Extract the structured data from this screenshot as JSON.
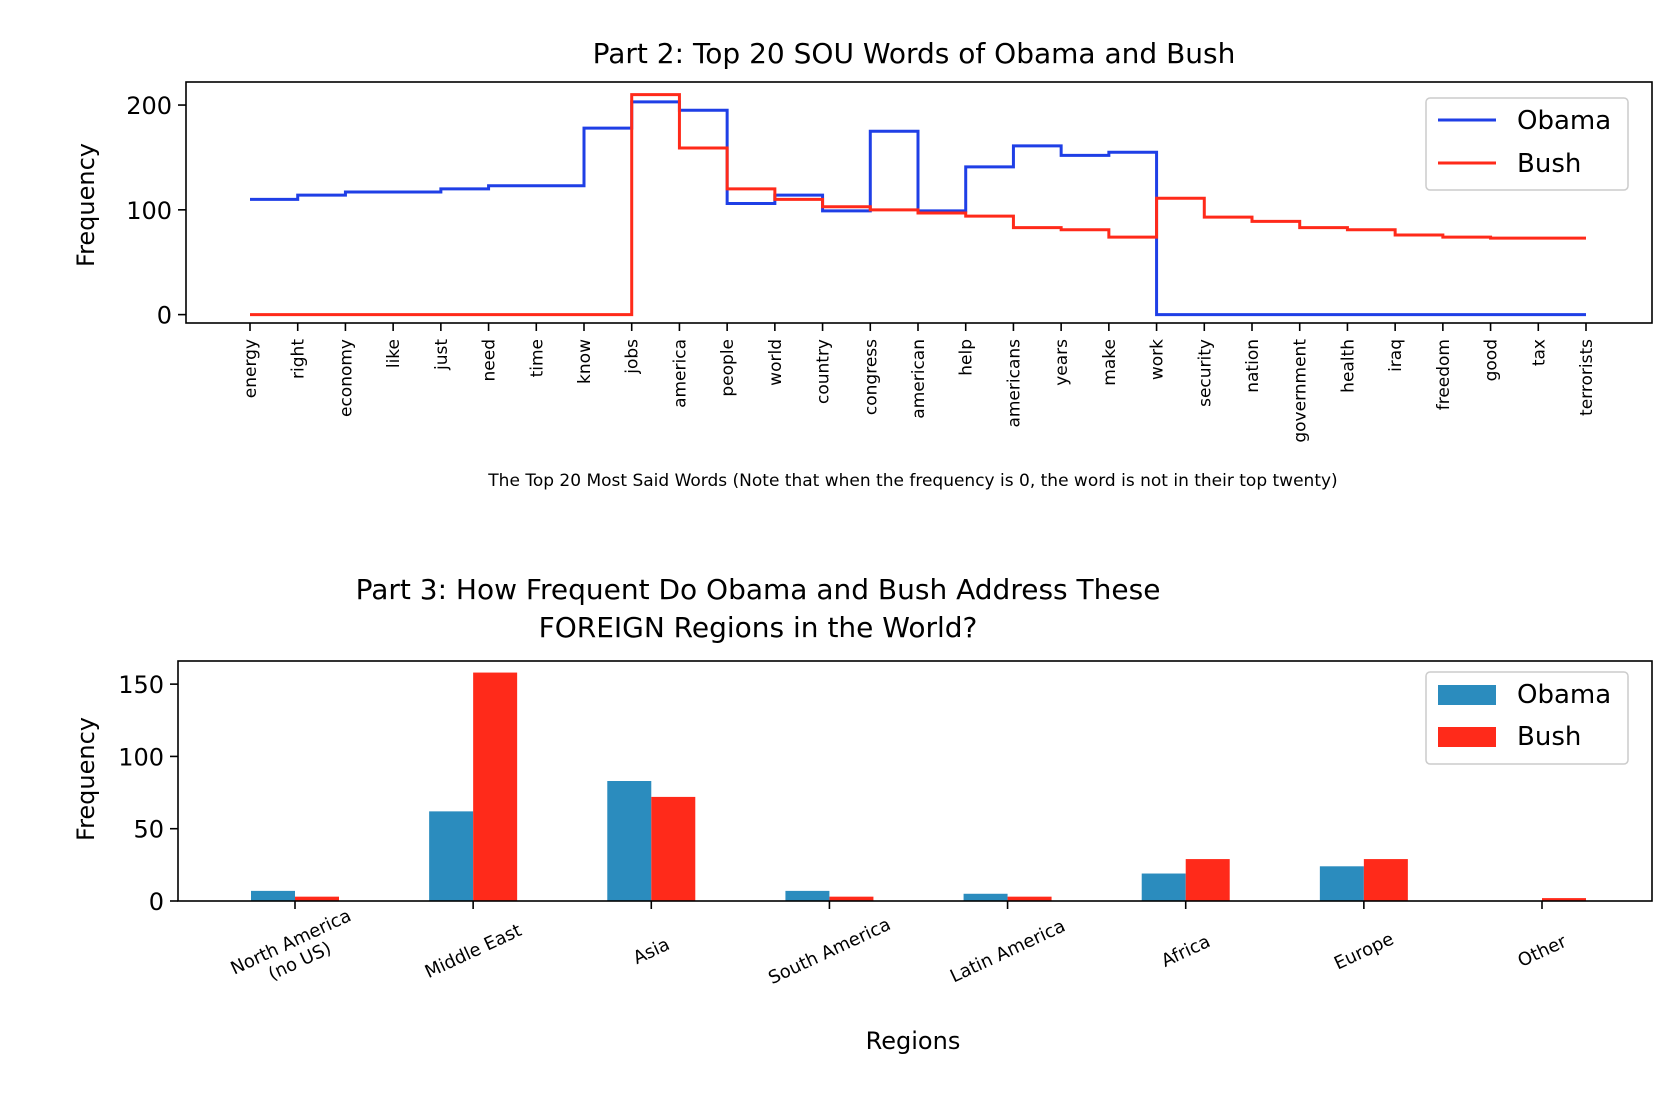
{
  "chart_data": [
    {
      "type": "line",
      "step": "post",
      "title": "Part 2: Top 20 SOU Words of Obama and Bush",
      "xlabel": "The Top 20 Most Said Words (Note that when the frequency is 0, the word is not in their top twenty)",
      "ylabel": "Frequency",
      "ylim": [
        -8,
        222
      ],
      "yticks": [
        0,
        100,
        200
      ],
      "grid": false,
      "legend": "top-right",
      "categories": [
        "energy",
        "right",
        "economy",
        "like",
        "just",
        "need",
        "time",
        "know",
        "jobs",
        "america",
        "people",
        "world",
        "country",
        "congress",
        "american",
        "help",
        "americans",
        "years",
        "make",
        "work",
        "security",
        "nation",
        "government",
        "health",
        "iraq",
        "freedom",
        "good",
        "tax",
        "terrorists"
      ],
      "series": [
        {
          "name": "Obama",
          "color": "#1f3fe6",
          "values": [
            110,
            114,
            117,
            117,
            120,
            123,
            123,
            178,
            203,
            195,
            106,
            114,
            99,
            175,
            99,
            141,
            161,
            152,
            155,
            0,
            0,
            0,
            0,
            0,
            0,
            0,
            0,
            0,
            0
          ]
        },
        {
          "name": "Bush",
          "color": "#ff2a1a",
          "values": [
            0,
            0,
            0,
            0,
            0,
            0,
            0,
            0,
            210,
            159,
            120,
            110,
            103,
            100,
            97,
            94,
            83,
            81,
            74,
            111,
            93,
            89,
            83,
            81,
            76,
            74,
            73,
            73,
            73
          ]
        }
      ]
    },
    {
      "type": "bar",
      "title": "Part 3: How Frequent Do Obama and Bush Address These\nFOREIGN Regions in the World?",
      "xlabel": "Regions",
      "ylabel": "Frequency",
      "ylim": [
        0,
        166
      ],
      "yticks": [
        0,
        50,
        100,
        150
      ],
      "grid": false,
      "legend": "top-right",
      "categories": [
        "North America\n(no US)",
        "Middle East",
        "Asia",
        "South America",
        "Latin America",
        "Africa",
        "Europe",
        "Other"
      ],
      "series": [
        {
          "name": "Obama",
          "color": "#2b8cbe",
          "values": [
            7,
            62,
            83,
            7,
            5,
            19,
            24,
            0
          ]
        },
        {
          "name": "Bush",
          "color": "#ff2a1a",
          "values": [
            3,
            158,
            72,
            3,
            3,
            29,
            29,
            2
          ]
        }
      ]
    }
  ]
}
